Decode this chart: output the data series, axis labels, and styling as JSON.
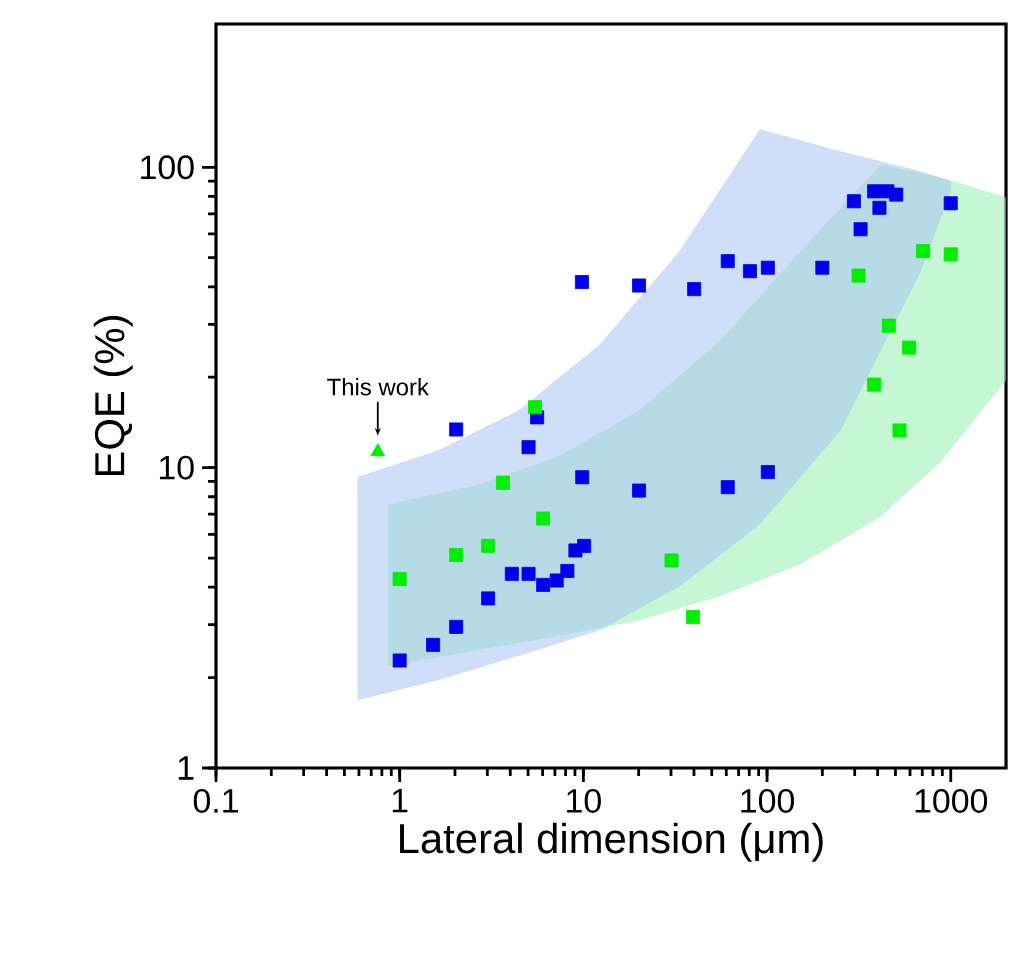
{
  "chart_data": {
    "type": "scatter",
    "xlabel": "Lateral dimension (μm)",
    "ylabel": "EQE (%)",
    "log": "xy",
    "xlim": [
      0.1,
      2000
    ],
    "ylim": [
      1,
      300
    ],
    "xticks": [
      0.1,
      1,
      10,
      100,
      1000
    ],
    "yticks": [
      1,
      10,
      100
    ],
    "grid": false,
    "annotations": [
      {
        "text": "This work",
        "x": 0.76,
        "y": 11.3
      }
    ],
    "series": [
      {
        "type": "line",
        "color": "#98f0b0",
        "x": [
          0.86,
          2.67,
          7.34,
          20.1,
          55.3,
          152,
          416,
          887,
          2000
        ],
        "values": [
          null,
          null,
          null,
          null,
          null,
          null,
          null,
          null,
          null
        ],
        "lower": [
          2.18,
          2.47,
          2.75,
          3.1,
          3.73,
          4.76,
          6.87,
          10.5,
          19.5
        ],
        "upper": [
          7.54,
          8.78,
          10.9,
          15.5,
          26.4,
          52.6,
          102,
          92.6,
          79.4
        ]
      },
      {
        "type": "line",
        "color": "#a8c4f4",
        "x": [
          0.59,
          1.61,
          4.43,
          12.2,
          33.4,
          91.5,
          251,
          689,
          1006
        ],
        "values": [
          null,
          null,
          null,
          null,
          null,
          null,
          null,
          null,
          null
        ],
        "lower": [
          1.68,
          1.96,
          2.36,
          2.87,
          4.02,
          6.47,
          13.3,
          45.1,
          83.2
        ],
        "upper": [
          9.3,
          11.4,
          15.5,
          25.6,
          52.6,
          134,
          113,
          97,
          89.8
        ]
      },
      {
        "marker": "square",
        "color": "#0000ee",
        "x": [
          1.0,
          1.52,
          2.03,
          3.03,
          4.08,
          5.03,
          6.04,
          7.16,
          8.18,
          9.05,
          10.1,
          9.86,
          5.03,
          5.6,
          2.03,
          9.82,
          20.1,
          40.1,
          61.1,
          80.7,
          101,
          200,
          297,
          383,
          409,
          452,
          505,
          323,
          1000,
          20.1,
          61.1,
          101
        ],
        "values": [
          2.28,
          2.57,
          2.95,
          3.67,
          4.43,
          4.43,
          4.07,
          4.21,
          4.53,
          5.3,
          5.49,
          9.29,
          11.7,
          14.7,
          13.4,
          41.5,
          40.4,
          39.3,
          48.7,
          45.1,
          46.3,
          46.3,
          77.1,
          83.2,
          73.3,
          83.2,
          81.1,
          62.2,
          75.9,
          8.39,
          8.61,
          9.67
        ]
      },
      {
        "marker": "square",
        "color": "#00ee00",
        "x": [
          5.46,
          3.65,
          6.04,
          2.03,
          3.03,
          1.0,
          30.2,
          39.5,
          315,
          707,
          1000,
          460,
          593,
          383,
          526
        ],
        "values": [
          15.9,
          8.91,
          6.77,
          5.12,
          5.49,
          4.26,
          4.91,
          3.18,
          43.6,
          52.6,
          51.3,
          29.7,
          25.1,
          18.9,
          13.3
        ]
      },
      {
        "marker": "triangle",
        "color": "#00ee00",
        "x": [
          0.76
        ],
        "values": [
          11.3
        ]
      }
    ]
  }
}
